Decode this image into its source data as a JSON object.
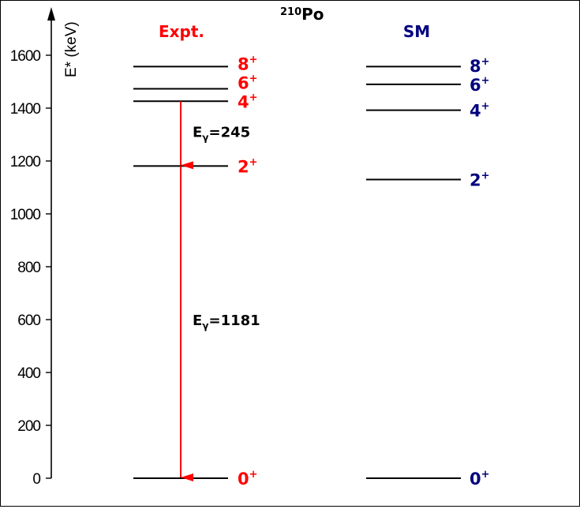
{
  "chart_data": {
    "type": "level-scheme",
    "title_mass": "210",
    "title_element": "Po",
    "ylabel": "E* (keV)",
    "ylim": [
      0,
      1700
    ],
    "yticks": [
      0,
      200,
      400,
      600,
      800,
      1000,
      1200,
      1400,
      1600
    ],
    "columns": [
      {
        "name": "Expt.",
        "color": "#ff0000",
        "levels": [
          {
            "spin": "0",
            "parity": "+",
            "energy": 0
          },
          {
            "spin": "2",
            "parity": "+",
            "energy": 1181
          },
          {
            "spin": "4",
            "parity": "+",
            "energy": 1426
          },
          {
            "spin": "6",
            "parity": "+",
            "energy": 1473
          },
          {
            "spin": "8",
            "parity": "+",
            "energy": 1557
          }
        ]
      },
      {
        "name": "SM",
        "color": "#00007f",
        "levels": [
          {
            "spin": "0",
            "parity": "+",
            "energy": 0
          },
          {
            "spin": "2",
            "parity": "+",
            "energy": 1130
          },
          {
            "spin": "4",
            "parity": "+",
            "energy": 1392
          },
          {
            "spin": "6",
            "parity": "+",
            "energy": 1490
          },
          {
            "spin": "8",
            "parity": "+",
            "energy": 1557
          }
        ]
      }
    ],
    "transitions": [
      {
        "from": 1426,
        "to": 1181,
        "label_base": "E",
        "label_sub": "γ",
        "label_value": "=245",
        "color": "#ff0000"
      },
      {
        "from": 1181,
        "to": 0,
        "label_base": "E",
        "label_sub": "γ",
        "label_value": "=1181",
        "color": "#ff0000"
      }
    ]
  }
}
